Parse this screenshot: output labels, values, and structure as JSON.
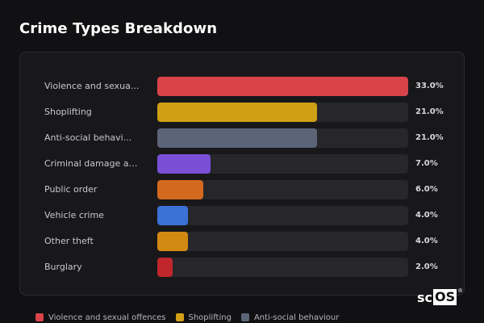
{
  "page": {
    "title": "Crime Types Breakdown"
  },
  "logo": {
    "text_left": "sc",
    "text_box": "OS",
    "mark": "®"
  },
  "chart_data": {
    "type": "bar",
    "orientation": "horizontal",
    "title": "Crime Types Breakdown",
    "categories": [
      "Violence and sexua...",
      "Shoplifting",
      "Anti-social behavi...",
      "Criminal damage an...",
      "Public order",
      "Vehicle crime",
      "Other theft",
      "Burglary"
    ],
    "values": [
      33.0,
      21.0,
      21.0,
      7.0,
      6.0,
      4.0,
      4.0,
      2.0
    ],
    "value_labels": [
      "33.0%",
      "21.0%",
      "21.0%",
      "7.0%",
      "6.0%",
      "4.0%",
      "4.0%",
      "2.0%"
    ],
    "colors": [
      "#d9434a",
      "#cf9f14",
      "#5c6478",
      "#7a4fd6",
      "#d2691e",
      "#3a72d6",
      "#d28a12",
      "#c0262b"
    ],
    "xlim": [
      0,
      33.0
    ],
    "grid": false,
    "legend": {
      "placement": "bottom-left",
      "entries": [
        {
          "label": "Violence and sexual offences",
          "color": "#d9434a"
        },
        {
          "label": "Shoplifting",
          "color": "#d4a017"
        },
        {
          "label": "Anti-social behaviour",
          "color": "#5c6478"
        }
      ]
    }
  }
}
